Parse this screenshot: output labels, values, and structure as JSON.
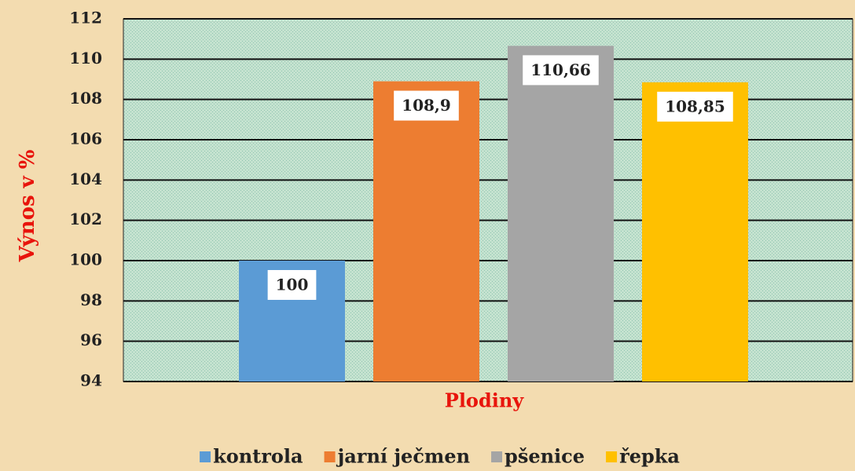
{
  "chart_data": {
    "type": "bar",
    "y_label": "Výnos v %",
    "x_label": "Plodiny",
    "categories": [
      null
    ],
    "series": [
      {
        "name": "kontrola",
        "color": "#5b9bd5",
        "values": [
          100
        ],
        "value_labels": [
          "100"
        ]
      },
      {
        "name": "jarní ječmen",
        "color": "#ed7d31",
        "values": [
          108.9
        ],
        "value_labels": [
          "108,9"
        ]
      },
      {
        "name": "pšenice",
        "color": "#a5a5a5",
        "values": [
          110.66
        ],
        "value_labels": [
          "110,66"
        ]
      },
      {
        "name": "řepka",
        "color": "#ffc000",
        "values": [
          108.85
        ],
        "value_labels": [
          "108,85"
        ]
      }
    ],
    "ylim": [
      94,
      112
    ],
    "yticks": [
      94,
      96,
      98,
      100,
      102,
      104,
      106,
      108,
      110,
      112
    ],
    "grid": true,
    "legend": "bottom"
  }
}
